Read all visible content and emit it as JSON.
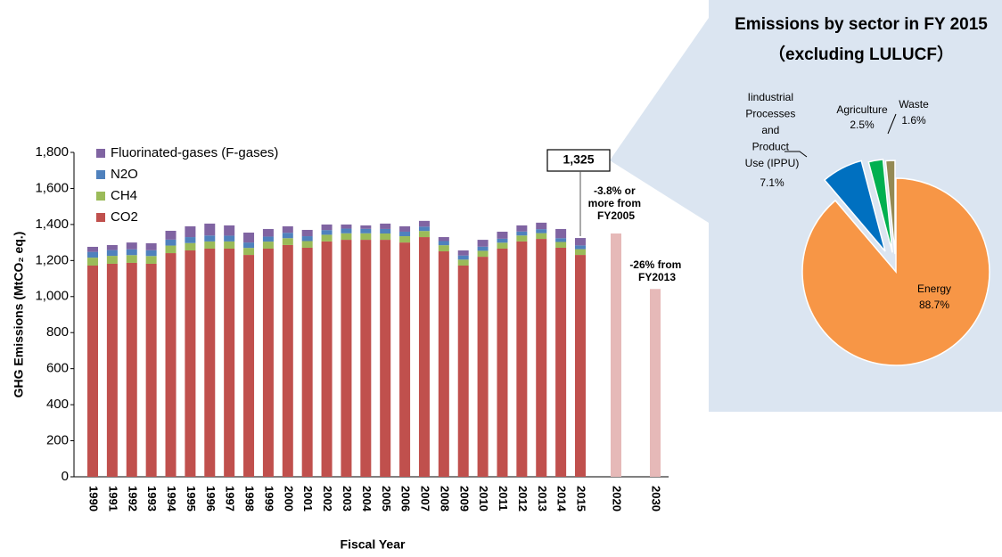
{
  "chart_data": [
    {
      "type": "bar",
      "x_label": "Fiscal Year",
      "y_label": "GHG Emissions (MtCO₂ eq.)",
      "categories": [
        "1990",
        "1991",
        "1992",
        "1993",
        "1994",
        "1995",
        "1996",
        "1997",
        "1998",
        "1999",
        "2000",
        "2001",
        "2002",
        "2003",
        "2004",
        "2005",
        "2006",
        "2007",
        "2008",
        "2009",
        "2010",
        "2011",
        "2012",
        "2013",
        "2014",
        "2015",
        "2020",
        "2030"
      ],
      "series": [
        {
          "name": "CO2",
          "color": "#c0504d",
          "values": [
            1172,
            1182,
            1187,
            1182,
            1241,
            1256,
            1266,
            1266,
            1231,
            1266,
            1286,
            1271,
            1306,
            1315,
            1315,
            1315,
            1300,
            1330,
            1251,
            1172,
            1221,
            1266,
            1306,
            1320,
            1271,
            1231,
            null,
            null
          ]
        },
        {
          "name": "CH4",
          "color": "#9bbb59",
          "values": [
            44,
            44,
            43,
            43,
            42,
            41,
            40,
            40,
            39,
            39,
            38,
            37,
            37,
            36,
            36,
            35,
            35,
            34,
            34,
            33,
            33,
            33,
            33,
            32,
            32,
            32,
            null,
            null
          ]
        },
        {
          "name": "N2O",
          "color": "#4f81bd",
          "values": [
            32,
            32,
            32,
            32,
            33,
            33,
            33,
            32,
            30,
            28,
            30,
            27,
            26,
            26,
            25,
            25,
            25,
            24,
            23,
            23,
            23,
            22,
            22,
            22,
            21,
            21,
            null,
            null
          ]
        },
        {
          "name": "Fluorinated-gases (F-gases)",
          "color": "#8064a2",
          "values": [
            28,
            28,
            38,
            39,
            49,
            60,
            66,
            57,
            55,
            42,
            36,
            35,
            31,
            23,
            19,
            30,
            30,
            32,
            22,
            28,
            38,
            39,
            34,
            36,
            51,
            41,
            null,
            null
          ]
        },
        {
          "color": "#e6b9b8",
          "values": [
            null,
            null,
            null,
            null,
            null,
            null,
            null,
            null,
            null,
            null,
            null,
            null,
            null,
            null,
            null,
            null,
            null,
            null,
            null,
            null,
            null,
            null,
            null,
            null,
            null,
            null,
            1350,
            1042
          ]
        }
      ],
      "ylim": [
        0,
        1800
      ],
      "yticks": [
        0,
        200,
        400,
        600,
        800,
        {
          "value": 1000,
          "label": "1,000"
        },
        {
          "value": 1200,
          "label": "1,200"
        },
        {
          "value": 1400,
          "label": "1,400"
        },
        {
          "value": 1600,
          "label": "1,600"
        },
        {
          "value": 1800,
          "label": "1,800"
        }
      ],
      "grid": false,
      "legend": "top-left",
      "annotations": [
        "1,325",
        "-3.8% or more from FY2005",
        "-26% from FY2013"
      ]
    },
    {
      "type": "pie",
      "title": "Emissions by sector in FY 2015",
      "subtitle": "（excluding LULUCF）",
      "categories": [
        "Energy",
        "Iindustrial Processes and Product Use (IPPU)",
        "Agriculture",
        "Waste"
      ],
      "values": [
        88.7,
        7.1,
        2.5,
        1.6
      ],
      "value_labels": [
        "88.7%",
        "7.1%",
        "2.5%",
        "1.6%"
      ],
      "colors": [
        "#f79646",
        "#0070c0",
        "#00b050",
        "#948a54"
      ]
    }
  ]
}
